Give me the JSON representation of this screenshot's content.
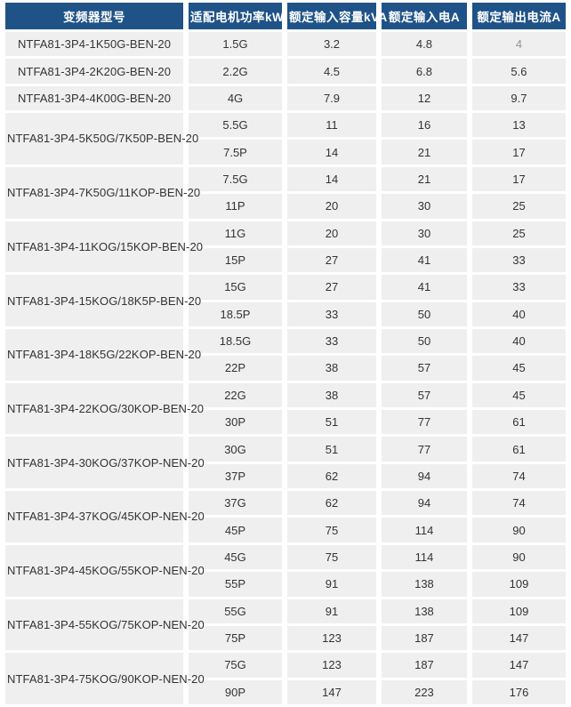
{
  "table": {
    "headers": [
      {
        "label": "变频器型号"
      },
      {
        "label": "适配电机功率kW"
      },
      {
        "label": "额定输入容量kVA"
      },
      {
        "label": "额定输入电A"
      },
      {
        "label": "额定输出电流A"
      }
    ],
    "groups": [
      {
        "model": "NTFA81-3P4-1K50G-BEN-20",
        "rows": [
          {
            "power": "1.5G",
            "kva": "3.2",
            "input_a": "4.8",
            "output_a": "4",
            "muted": [
              "output_a"
            ]
          }
        ]
      },
      {
        "model": "NTFA81-3P4-2K20G-BEN-20",
        "rows": [
          {
            "power": "2.2G",
            "kva": "4.5",
            "input_a": "6.8",
            "output_a": "5.6"
          }
        ]
      },
      {
        "model": "NTFA81-3P4-4K00G-BEN-20",
        "rows": [
          {
            "power": "4G",
            "kva": "7.9",
            "input_a": "12",
            "output_a": "9.7"
          }
        ]
      },
      {
        "model": "NTFA81-3P4-5K50G/7K50P-BEN-20",
        "rows": [
          {
            "power": "5.5G",
            "kva": "11",
            "input_a": "16",
            "output_a": "13"
          },
          {
            "power": "7.5P",
            "kva": "14",
            "input_a": "21",
            "output_a": "17"
          }
        ]
      },
      {
        "model": "NTFA81-3P4-7K50G/11KOP-BEN-20",
        "rows": [
          {
            "power": "7.5G",
            "kva": "14",
            "input_a": "21",
            "output_a": "17"
          },
          {
            "power": "11P",
            "kva": "20",
            "input_a": "30",
            "output_a": "25"
          }
        ]
      },
      {
        "model": "NTFA81-3P4-11KOG/15KOP-BEN-20",
        "rows": [
          {
            "power": "11G",
            "kva": "20",
            "input_a": "30",
            "output_a": "25"
          },
          {
            "power": "15P",
            "kva": "27",
            "input_a": "41",
            "output_a": "33"
          }
        ]
      },
      {
        "model": "NTFA81-3P4-15KOG/18K5P-BEN-20",
        "rows": [
          {
            "power": "15G",
            "kva": "27",
            "input_a": "41",
            "output_a": "33"
          },
          {
            "power": "18.5P",
            "kva": "33",
            "input_a": "50",
            "output_a": "40"
          }
        ]
      },
      {
        "model": "NTFA81-3P4-18K5G/22KOP-BEN-20",
        "rows": [
          {
            "power": "18.5G",
            "kva": "33",
            "input_a": "50",
            "output_a": "40"
          },
          {
            "power": "22P",
            "kva": "38",
            "input_a": "57",
            "output_a": "45"
          }
        ]
      },
      {
        "model": "NTFA81-3P4-22KOG/30KOP-BEN-20",
        "rows": [
          {
            "power": "22G",
            "kva": "38",
            "input_a": "57",
            "output_a": "45"
          },
          {
            "power": "30P",
            "kva": "51",
            "input_a": "77",
            "output_a": "61"
          }
        ]
      },
      {
        "model": "NTFA81-3P4-30KOG/37KOP-NEN-20",
        "rows": [
          {
            "power": "30G",
            "kva": "51",
            "input_a": "77",
            "output_a": "61"
          },
          {
            "power": "37P",
            "kva": "62",
            "input_a": "94",
            "output_a": "74"
          }
        ]
      },
      {
        "model": "NTFA81-3P4-37KOG/45KOP-NEN-20",
        "rows": [
          {
            "power": "37G",
            "kva": "62",
            "input_a": "94",
            "output_a": "74"
          },
          {
            "power": "45P",
            "kva": "75",
            "input_a": "114",
            "output_a": "90"
          }
        ]
      },
      {
        "model": "NTFA81-3P4-45KOG/55KOP-NEN-20",
        "rows": [
          {
            "power": "45G",
            "kva": "75",
            "input_a": "114",
            "output_a": "90"
          },
          {
            "power": "55P",
            "kva": "91",
            "input_a": "138",
            "output_a": "109"
          }
        ]
      },
      {
        "model": "NTFA81-3P4-55KOG/75KOP-NEN-20",
        "rows": [
          {
            "power": "55G",
            "kva": "91",
            "input_a": "138",
            "output_a": "109"
          },
          {
            "power": "75P",
            "kva": "123",
            "input_a": "187",
            "output_a": "147"
          }
        ]
      },
      {
        "model": "NTFA81-3P4-75KOG/90KOP-NEN-20",
        "rows": [
          {
            "power": "75G",
            "kva": "123",
            "input_a": "187",
            "output_a": "147"
          },
          {
            "power": "90P",
            "kva": "147",
            "input_a": "223",
            "output_a": "176"
          }
        ]
      }
    ]
  },
  "colors": {
    "header_bg": "#1f5388",
    "header_text": "#ffffff",
    "cell_bg": "#efefef",
    "cell_text": "#333338",
    "muted_text": "#94949c",
    "gap": "#ffffff"
  }
}
